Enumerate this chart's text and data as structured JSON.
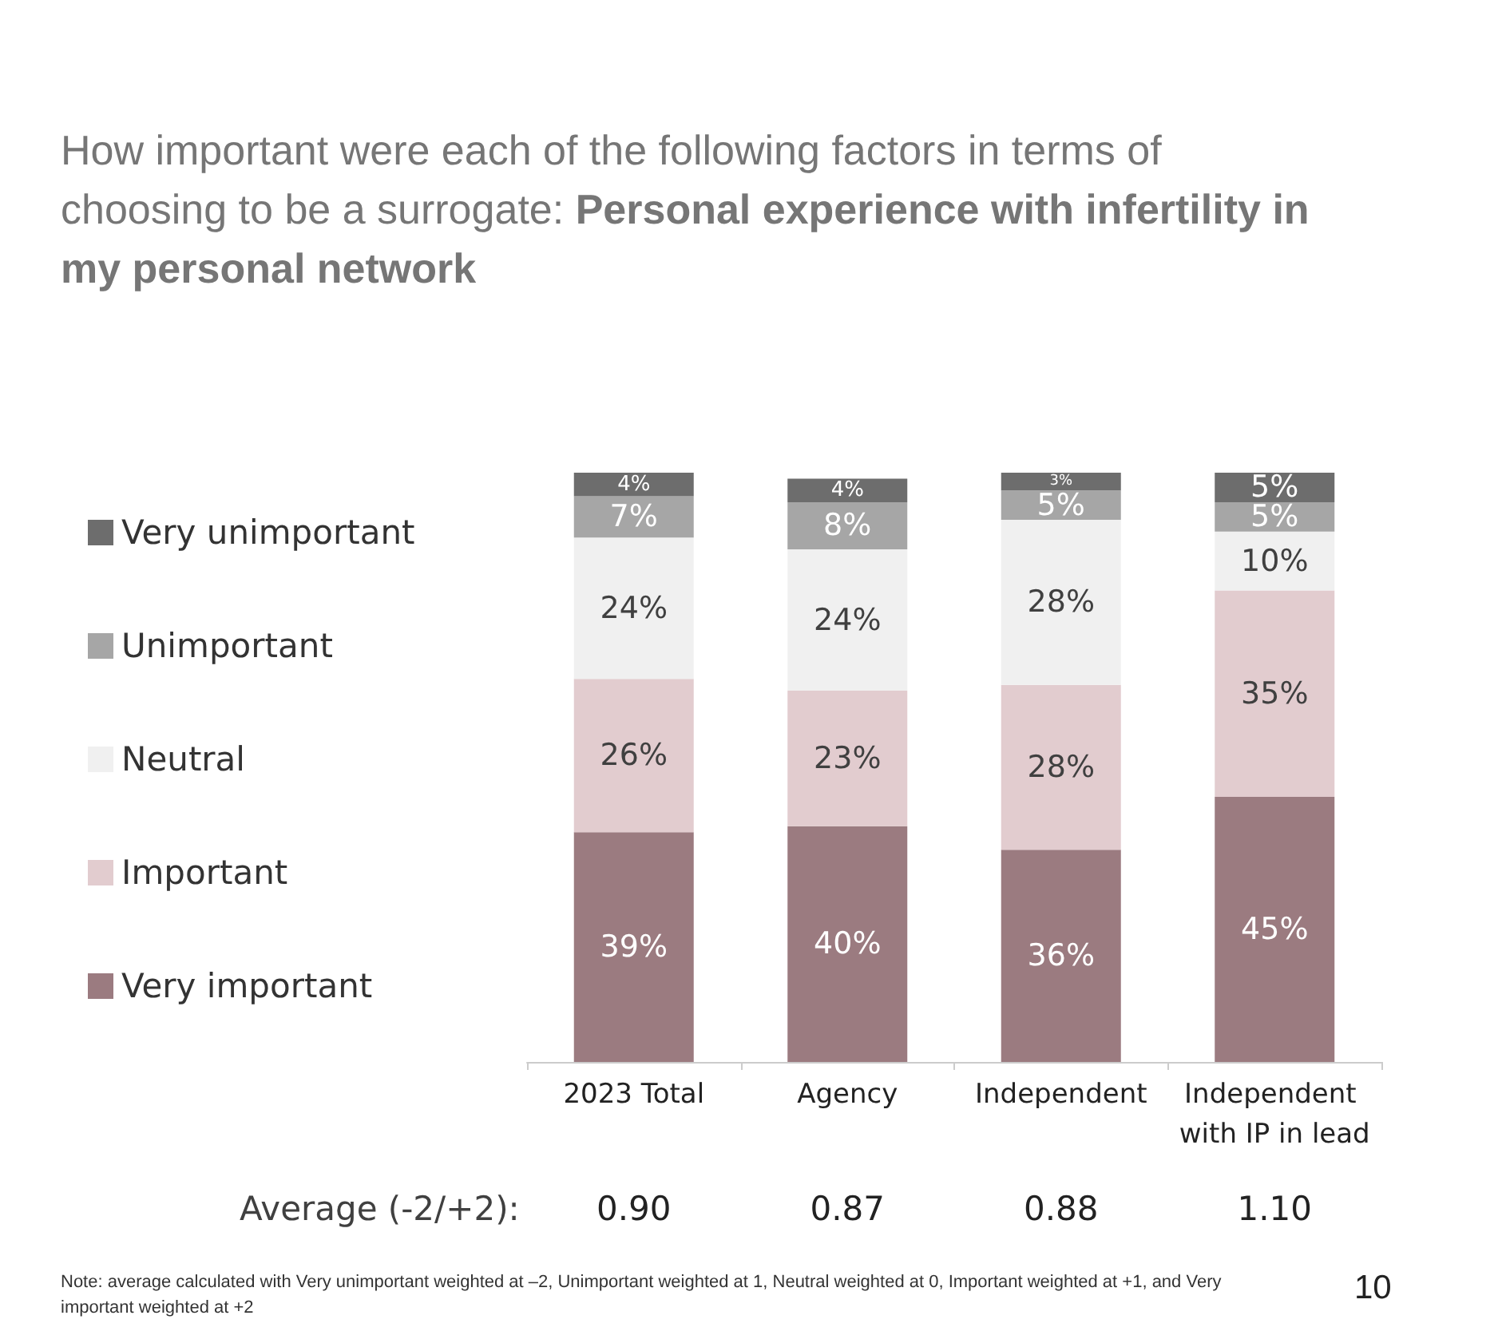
{
  "chart_data": {
    "type": "bar",
    "stacked": true,
    "title": "How important were each of the following factors in terms of choosing to be a surrogate:",
    "subtitle": "Personal experience with infertility in my personal network",
    "categories": [
      "2023 Total",
      "Agency",
      "Independent",
      "Independent with IP in lead"
    ],
    "series": [
      {
        "name": "Very important",
        "color": "#9b7b80",
        "values": [
          39,
          40,
          36,
          45
        ],
        "value_labels": [
          "39%",
          "40%",
          "36%",
          "45%"
        ]
      },
      {
        "name": "Important",
        "color": "#e2cccf",
        "values": [
          26,
          23,
          28,
          35
        ],
        "value_labels": [
          "26%",
          "23%",
          "28%",
          "35%"
        ]
      },
      {
        "name": "Neutral",
        "color": "#f0f0f0",
        "values": [
          24,
          24,
          28,
          10
        ],
        "value_labels": [
          "24%",
          "24%",
          "28%",
          "10%"
        ]
      },
      {
        "name": "Unimportant",
        "color": "#a6a6a6",
        "values": [
          7,
          8,
          5,
          5
        ],
        "value_labels": [
          "7%",
          "8%",
          "5%",
          "5%"
        ]
      },
      {
        "name": "Very unimportant",
        "color": "#6d6d6d",
        "values": [
          4,
          4,
          3,
          5
        ],
        "value_labels": [
          "4%",
          "4%",
          "3%",
          "5%"
        ]
      }
    ],
    "legend": "left",
    "annotations": [
      "Average (-2/+2):",
      "0.90",
      "0.87",
      "0.88",
      "1.10",
      "Note:  average calculated with Very unimportant weighted at –2, Unimportant weighted at 1, Neutral weighted at 0, Important weighted at +1, and Very important weighted at +2",
      "10"
    ]
  }
}
